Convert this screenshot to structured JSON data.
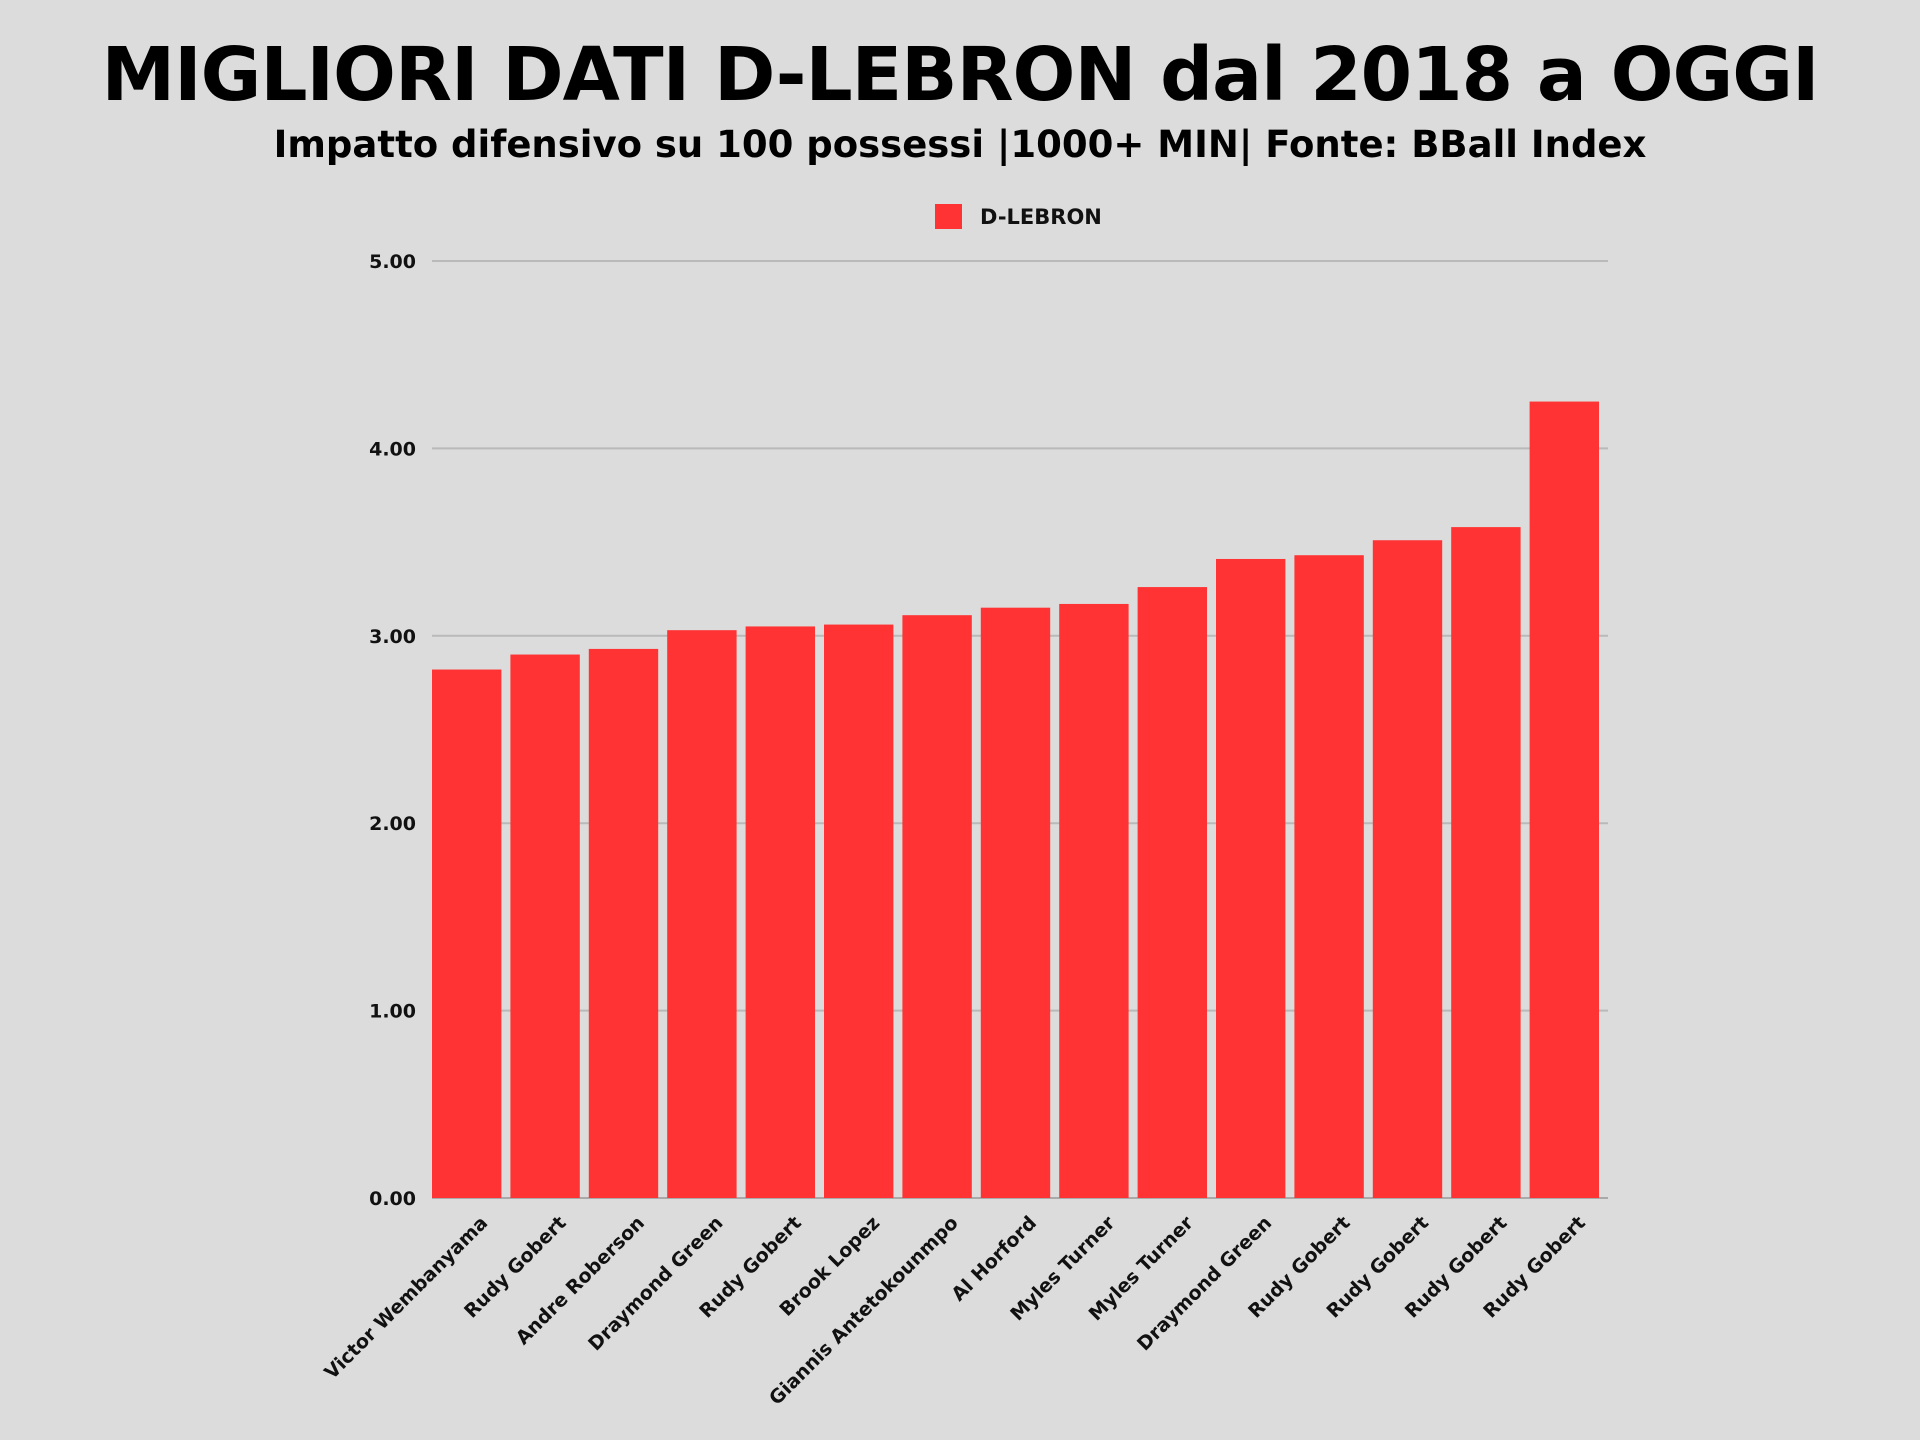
{
  "chart_data": {
    "type": "bar",
    "title": "MIGLIORI DATI D-LEBRON dal 2018 a OGGI",
    "subtitle": "Impatto difensivo su 100 possessi |1000+ MIN| Fonte: BBall Index",
    "xlabel": "",
    "ylabel": "",
    "ylim": [
      0,
      5
    ],
    "yticks": [
      0,
      1,
      2,
      3,
      4,
      5
    ],
    "ytick_labels": [
      "0.00",
      "1.00",
      "2.00",
      "3.00",
      "4.00",
      "5.00"
    ],
    "grid": true,
    "legend": {
      "position": "top-center",
      "entries": [
        "D-LEBRON"
      ]
    },
    "categories": [
      "Victor Wembanyama",
      "Rudy Gobert",
      "Andre Roberson",
      "Draymond Green",
      "Rudy Gobert",
      "Brook Lopez",
      "Giannis Antetokounmpo",
      "Al Horford",
      "Myles Turner",
      "Myles Turner",
      "Draymond Green",
      "Rudy Gobert",
      "Rudy Gobert",
      "Rudy Gobert",
      "Rudy Gobert"
    ],
    "series": [
      {
        "name": "D-LEBRON",
        "color": "#ff3333",
        "values": [
          2.82,
          2.9,
          2.93,
          3.03,
          3.05,
          3.06,
          3.11,
          3.15,
          3.17,
          3.26,
          3.41,
          3.43,
          3.51,
          3.58,
          4.25
        ]
      }
    ]
  }
}
